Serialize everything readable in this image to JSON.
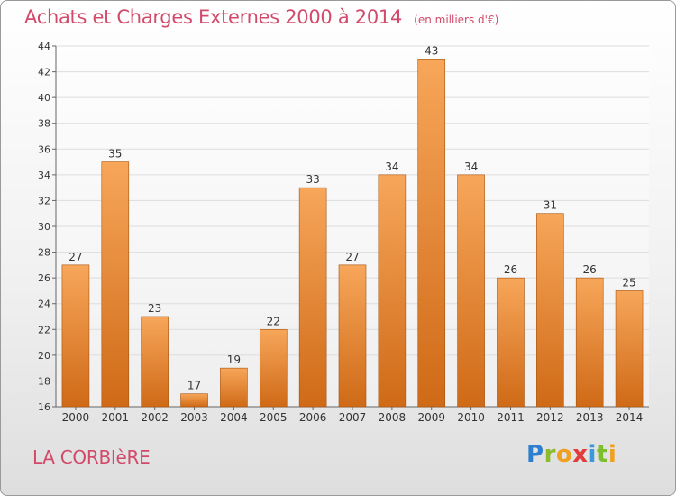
{
  "title": "Achats et Charges Externes 2000 à 2014",
  "subtitle": "(en milliers d'€)",
  "town": "LA CORBIèRE",
  "logo": {
    "letters": [
      "P",
      "r",
      "o",
      "x",
      "i",
      "t",
      "i"
    ]
  },
  "colors": {
    "title": "#d24a6a",
    "bar_top": "#f7a65a",
    "bar_bottom": "#cf6a17",
    "gridline": "#dddddd"
  },
  "chart_data": {
    "type": "bar",
    "categories": [
      "2000",
      "2001",
      "2002",
      "2003",
      "2004",
      "2005",
      "2006",
      "2007",
      "2008",
      "2009",
      "2010",
      "2011",
      "2012",
      "2013",
      "2014"
    ],
    "values": [
      27,
      35,
      23,
      17,
      19,
      22,
      33,
      27,
      34,
      43,
      34,
      26,
      31,
      26,
      25
    ],
    "ylim": [
      16,
      44
    ],
    "yticks": [
      16,
      18,
      20,
      22,
      24,
      26,
      28,
      30,
      32,
      34,
      36,
      38,
      40,
      42,
      44
    ],
    "grid": true,
    "data_labels": true
  }
}
